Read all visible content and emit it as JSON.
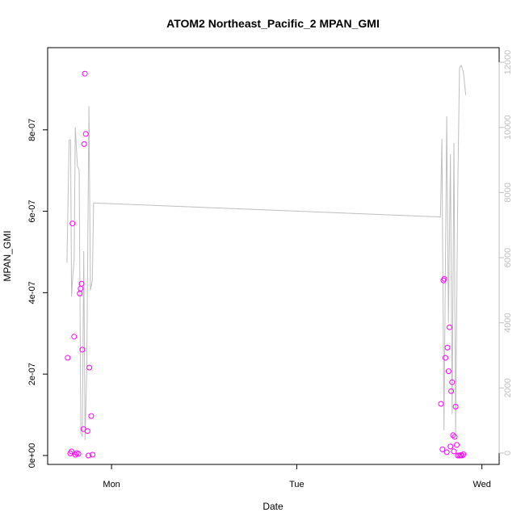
{
  "chart_data": {
    "type": "scatter",
    "title": "ATOM2 Northeast_Pacific_2 MPAN_GMI",
    "xlabel": "Date",
    "ylabel": "MPAN_GMI",
    "x_ticks": [
      {
        "label": "Mon",
        "day": 1.0
      },
      {
        "label": "Tue",
        "day": 2.0
      },
      {
        "label": "Wed",
        "day": 3.0
      }
    ],
    "y_ticks": [
      {
        "label": "0e+00",
        "value": 0
      },
      {
        "label": "2e-07",
        "value": 2e-07
      },
      {
        "label": "4e-07",
        "value": 4e-07
      },
      {
        "label": "6e-07",
        "value": 6e-07
      },
      {
        "label": "8e-07",
        "value": 8e-07
      }
    ],
    "y2_ticks": [
      {
        "label": "0",
        "value": 0
      },
      {
        "label": "2000",
        "value": 2000
      },
      {
        "label": "4000",
        "value": 4000
      },
      {
        "label": "6000",
        "value": 6000
      },
      {
        "label": "8000",
        "value": 8000
      },
      {
        "label": "10000",
        "value": 10000
      },
      {
        "label": "12000",
        "value": 12000
      }
    ],
    "xlim_days": [
      0.716,
      3.032
    ],
    "ylim": [
      -1e-08,
      9.9e-07
    ],
    "y2lim": [
      -200,
      12300
    ],
    "grid": false,
    "colors": {
      "points": "#ff00ff",
      "altitude_line": "#bebebe",
      "axis": "#000000",
      "right_axis": "#bebebe"
    },
    "series": [
      {
        "kind": "points",
        "axis": "left",
        "points": [
          [
            0.763,
            2.4e-07
          ],
          [
            0.777,
            5e-09
          ],
          [
            0.784,
            1e-08
          ],
          [
            0.789,
            5.7e-07
          ],
          [
            0.798,
            2.92e-07
          ],
          [
            0.805,
            2e-09
          ],
          [
            0.812,
            6e-09
          ],
          [
            0.821,
            4e-09
          ],
          [
            0.828,
            3.98e-07
          ],
          [
            0.833,
            4.1e-07
          ],
          [
            0.838,
            4.22e-07
          ],
          [
            0.842,
            2.6e-07
          ],
          [
            0.848,
            6.5e-08
          ],
          [
            0.852,
            7.65e-07
          ],
          [
            0.856,
            9.38e-07
          ],
          [
            0.861,
            7.9e-07
          ],
          [
            0.87,
            6e-08
          ],
          [
            0.875,
            0.0
          ],
          [
            0.88,
            2.16e-07
          ],
          [
            0.89,
            9.7e-08
          ],
          [
            0.897,
            2e-09
          ],
          [
            2.779,
            1.27e-07
          ],
          [
            2.787,
            1.5e-08
          ],
          [
            2.792,
            4.3e-07
          ],
          [
            2.797,
            4.34e-07
          ],
          [
            2.803,
            2.4e-07
          ],
          [
            2.81,
            8e-09
          ],
          [
            2.814,
            2.65e-07
          ],
          [
            2.82,
            2.07e-07
          ],
          [
            2.825,
            3.15e-07
          ],
          [
            2.83,
            2.2e-08
          ],
          [
            2.834,
            1.58e-07
          ],
          [
            2.839,
            1.8e-07
          ],
          [
            2.844,
            5e-08
          ],
          [
            2.849,
            1e-08
          ],
          [
            2.853,
            4.6e-08
          ],
          [
            2.858,
            1.2e-07
          ],
          [
            2.864,
            2.6e-08
          ],
          [
            2.87,
            0.0
          ],
          [
            2.879,
            0.0
          ],
          [
            2.886,
            1e-09
          ],
          [
            2.893,
            0.0
          ],
          [
            2.9,
            3e-09
          ]
        ]
      },
      {
        "kind": "line",
        "axis": "right",
        "points": [
          [
            0.759,
            5850
          ],
          [
            0.771,
            9610
          ],
          [
            0.779,
            9620
          ],
          [
            0.784,
            4800
          ],
          [
            0.788,
            5200
          ],
          [
            0.798,
            5950
          ],
          [
            0.804,
            10000
          ],
          [
            0.816,
            8800
          ],
          [
            0.825,
            8700
          ],
          [
            0.834,
            600
          ],
          [
            0.842,
            520
          ],
          [
            0.85,
            6200
          ],
          [
            0.857,
            400
          ],
          [
            0.866,
            2500
          ],
          [
            0.878,
            10650
          ],
          [
            0.886,
            5000
          ],
          [
            0.896,
            5300
          ],
          [
            0.903,
            7680
          ],
          [
            2.776,
            7250
          ],
          [
            2.784,
            9650
          ],
          [
            2.795,
            700
          ],
          [
            2.81,
            10340
          ],
          [
            2.819,
            4000
          ],
          [
            2.83,
            9180
          ],
          [
            2.839,
            1200
          ],
          [
            2.849,
            9520
          ],
          [
            2.858,
            600
          ],
          [
            2.87,
            8300
          ],
          [
            2.879,
            11830
          ],
          [
            2.888,
            11900
          ],
          [
            2.9,
            11710
          ],
          [
            2.913,
            10990
          ]
        ]
      }
    ]
  }
}
